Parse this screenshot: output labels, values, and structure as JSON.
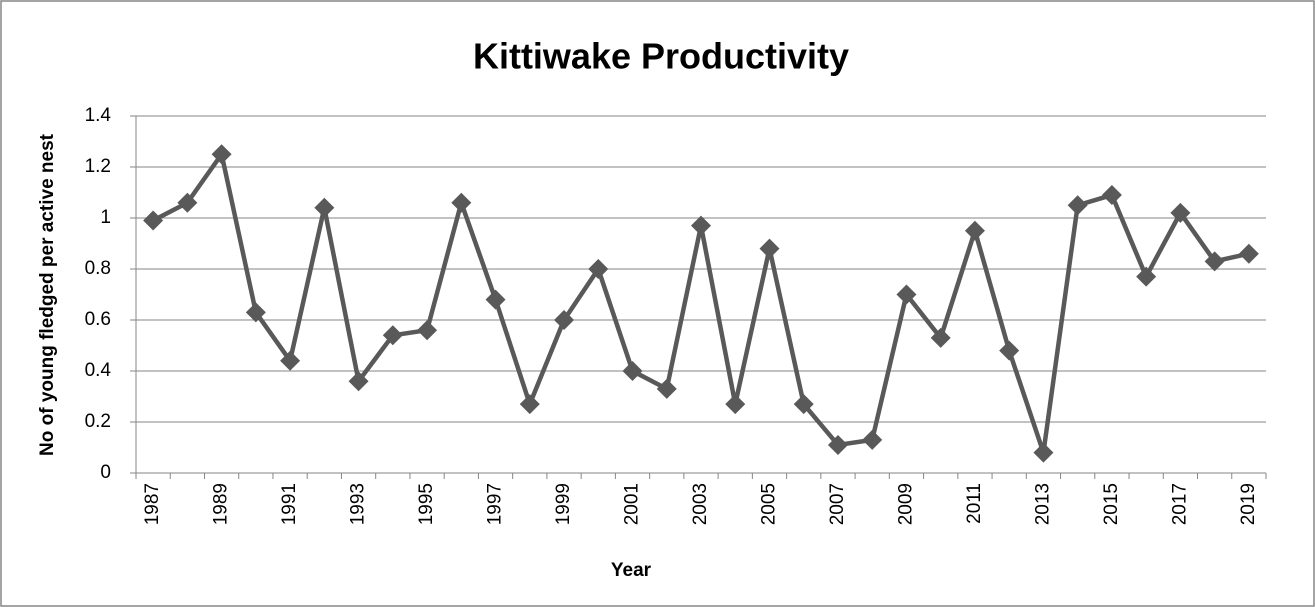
{
  "chart_data": {
    "type": "line",
    "title": "Kittiwake Productivity",
    "x_label": "Year",
    "y_label": "No of young fledged per active nest",
    "categories": [
      "1987",
      null,
      "1989",
      null,
      "1991",
      null,
      "1993",
      null,
      "1995",
      null,
      "1997",
      null,
      "1999",
      null,
      "2001",
      null,
      "2003",
      null,
      "2005",
      null,
      "2007",
      null,
      "2009",
      null,
      "2011",
      null,
      "2013",
      null,
      "2015",
      null,
      "2017",
      null,
      "2019"
    ],
    "values": [
      0.99,
      1.06,
      1.25,
      0.63,
      0.44,
      1.04,
      0.36,
      0.54,
      0.56,
      1.06,
      0.68,
      0.27,
      0.6,
      0.8,
      0.4,
      0.33,
      0.97,
      0.27,
      0.88,
      0.27,
      0.11,
      0.13,
      0.7,
      0.53,
      0.95,
      0.48,
      0.08,
      1.05,
      1.09,
      0.77,
      1.02,
      0.83,
      0.86
    ],
    "color": "#595959",
    "marker": "diamond",
    "ylim": [
      0,
      1.4
    ],
    "yticks": [
      0,
      0.2,
      0.4,
      0.6,
      0.8,
      1,
      1.2,
      1.4
    ],
    "grid": true
  }
}
